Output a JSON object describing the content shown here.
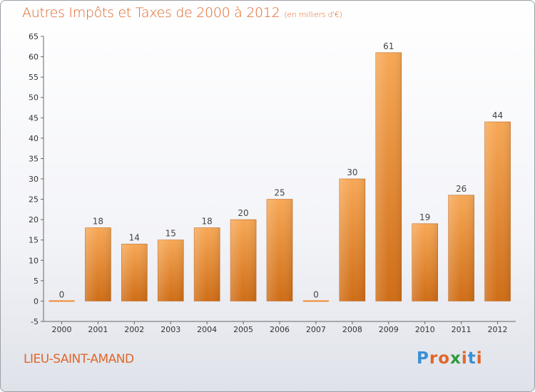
{
  "chart_data": {
    "type": "bar",
    "title": "Autres Impôts et Taxes de 2000 à 2012",
    "subtitle": "(en milliers d'€)",
    "categories": [
      "2000",
      "2001",
      "2002",
      "2003",
      "2004",
      "2005",
      "2006",
      "2007",
      "2008",
      "2009",
      "2010",
      "2011",
      "2012"
    ],
    "values": [
      0,
      18,
      14,
      15,
      18,
      20,
      25,
      0,
      30,
      61,
      19,
      26,
      44
    ],
    "ylim": [
      -5,
      65
    ],
    "yticks": [
      -5,
      0,
      5,
      10,
      15,
      20,
      25,
      30,
      35,
      40,
      45,
      50,
      55,
      60,
      65
    ],
    "grid": false,
    "bar_color": "#f08a2e"
  },
  "footer": {
    "commune": "LIEU-SAINT-AMAND",
    "logo": "Proxiti",
    "logo_colors": [
      "#3a8fd4",
      "#e0662a",
      "#e0662a",
      "#2e9b3a",
      "#e0662a",
      "#3a8fd4",
      "#e0662a"
    ]
  }
}
